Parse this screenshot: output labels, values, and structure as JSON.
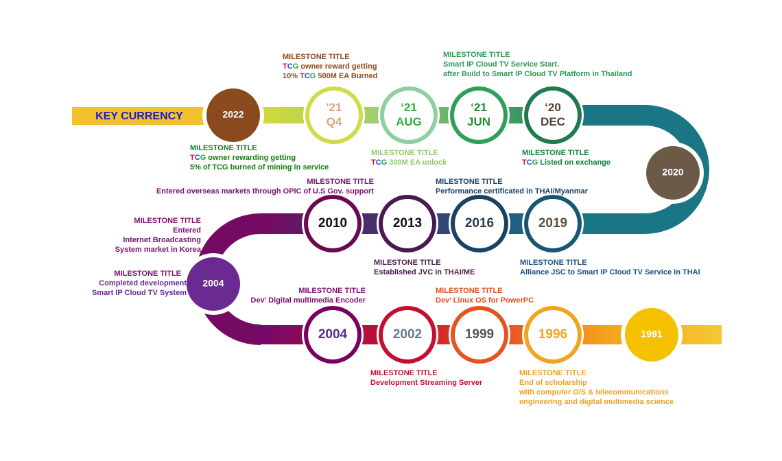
{
  "label": "KEY CURRENCY",
  "nodes": [
    {
      "lines": [
        "2022"
      ]
    },
    {
      "lines": [
        "'21",
        "Q4"
      ]
    },
    {
      "lines": [
        "‘21",
        "AUG"
      ]
    },
    {
      "lines": [
        "‘21",
        "JUN"
      ]
    },
    {
      "lines": [
        "‘20",
        "DEC"
      ]
    },
    {
      "lines": [
        "2020"
      ]
    },
    {
      "lines": [
        "2019"
      ]
    },
    {
      "lines": [
        "2016"
      ]
    },
    {
      "lines": [
        "2013"
      ]
    },
    {
      "lines": [
        "2010"
      ]
    },
    {
      "lines": [
        "2004"
      ]
    },
    {
      "lines": [
        "2004"
      ]
    },
    {
      "lines": [
        "2002"
      ]
    },
    {
      "lines": [
        "1999"
      ]
    },
    {
      "lines": [
        "1996"
      ]
    },
    {
      "lines": [
        "1991"
      ]
    }
  ],
  "milestones": [
    {
      "title": "MILESTONE TITLE",
      "lines": [
        "TCG owner reward getting",
        "10% TCG 500M EA Burned"
      ]
    },
    {
      "title": "MILESTONE TITLE",
      "lines": [
        "Smart IP Cloud TV Service Start.",
        "after Build to Smart IP Cloud TV Platform in Thailand"
      ]
    },
    {
      "title": "MILESTONE TITLE",
      "lines": [
        "TCG owner rewarding getting",
        "5% of TCG burned of mining in service"
      ]
    },
    {
      "title": "MILESTONE TITLE",
      "lines": [
        "TCG 300M EA unlock"
      ]
    },
    {
      "title": "MILESTONE TITLE",
      "lines": [
        "TCG Listed on exchange"
      ]
    },
    {
      "title": "MILESTONE TITLE",
      "lines": [
        "Entered overseas markets through OPIC of U.S Gov. support"
      ]
    },
    {
      "title": "MILESTONE TITLE",
      "lines": [
        "Performance certificated in THAI/Myanmar"
      ]
    },
    {
      "title": "MILESTONE TITLE",
      "lines": [
        "Entered",
        "Internet Broadcasting",
        "System market in Korea"
      ]
    },
    {
      "title": "MILESTONE TITLE",
      "lines": [
        "Completed development",
        "Smart IP Cloud TV System"
      ]
    },
    {
      "title": "MILESTONE TITLE",
      "lines": [
        "Established JVC in THAI/ME"
      ]
    },
    {
      "title": "MILESTONE TITLE",
      "lines": [
        "Alliance JSC to Smart IP Cloud TV Service in THAI"
      ]
    },
    {
      "title": "MILESTONE TITLE",
      "lines": [
        "Dev’ Digital multimedia Encoder"
      ]
    },
    {
      "title": "MILESTONE TITLE",
      "lines": [
        "Dev’ Linux OS for PowerPC"
      ]
    },
    {
      "title": "MILESTONE TITLE",
      "lines": [
        "Development Streaming Server"
      ]
    },
    {
      "title": "MILESTONE TITLE",
      "lines": [
        "End of scholarship",
        "with computer O/S & telecommunications",
        "engineering and digital multimedia science"
      ]
    }
  ]
}
